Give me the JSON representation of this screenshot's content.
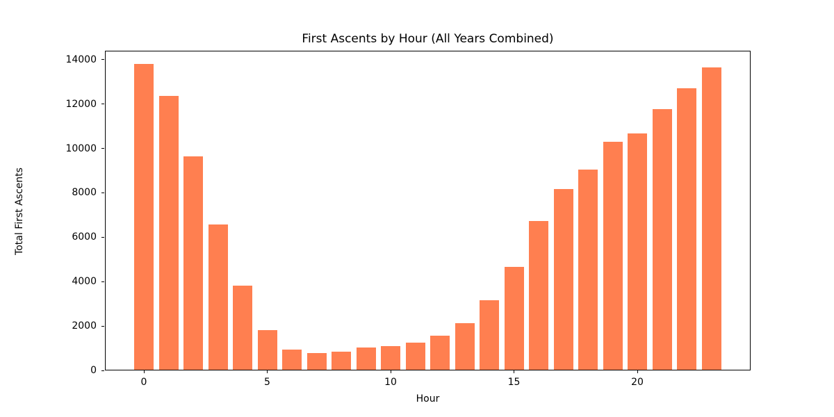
{
  "chart_data": {
    "type": "bar",
    "title": "First Ascents by Hour (All Years Combined)",
    "xlabel": "Hour",
    "ylabel": "Total First Ascents",
    "categories": [
      0,
      1,
      2,
      3,
      4,
      5,
      6,
      7,
      8,
      9,
      10,
      11,
      12,
      13,
      14,
      15,
      16,
      17,
      18,
      19,
      20,
      21,
      22,
      23
    ],
    "values": [
      13770,
      12340,
      9600,
      6550,
      3800,
      1790,
      910,
      750,
      820,
      990,
      1070,
      1230,
      1540,
      2090,
      3130,
      4620,
      6700,
      8140,
      9000,
      10280,
      10640,
      11740,
      12680,
      13620
    ],
    "x_ticks": [
      0,
      5,
      10,
      15,
      20
    ],
    "y_ticks": [
      0,
      2000,
      4000,
      6000,
      8000,
      10000,
      12000,
      14000
    ],
    "ylim": [
      0,
      14400
    ],
    "bar_color": "#FF7F50",
    "axis_color": "#000000",
    "background_color": "#ffffff",
    "grid": false,
    "legend": null
  }
}
